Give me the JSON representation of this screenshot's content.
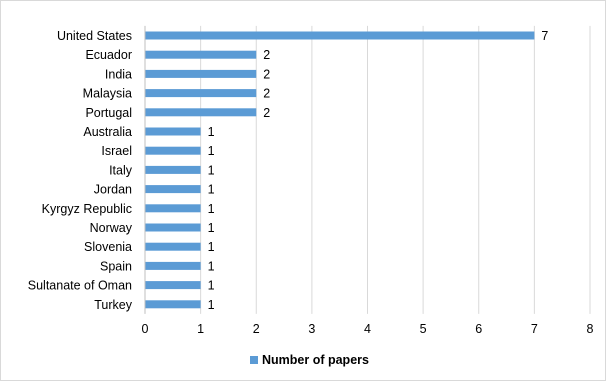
{
  "chart_data": {
    "type": "bar",
    "orientation": "horizontal",
    "categories": [
      "United States",
      "Ecuador",
      "India",
      "Malaysia",
      "Portugal",
      "Australia",
      "Israel",
      "Italy",
      "Jordan",
      "Kyrgyz Republic",
      "Norway",
      "Slovenia",
      "Spain",
      "Sultanate of Oman",
      "Turkey"
    ],
    "series": [
      {
        "name": "Number of papers",
        "values": [
          7,
          2,
          2,
          2,
          2,
          1,
          1,
          1,
          1,
          1,
          1,
          1,
          1,
          1,
          1
        ]
      }
    ],
    "xlim": [
      0,
      8
    ],
    "x_ticks": [
      0,
      1,
      2,
      3,
      4,
      5,
      6,
      7,
      8
    ],
    "grid": "vertical",
    "legend": "bottom",
    "data_labels": true,
    "colors": {
      "bar": "#5b9bd5",
      "grid": "#d9d9d9",
      "axis": "#bfbfbf"
    }
  }
}
